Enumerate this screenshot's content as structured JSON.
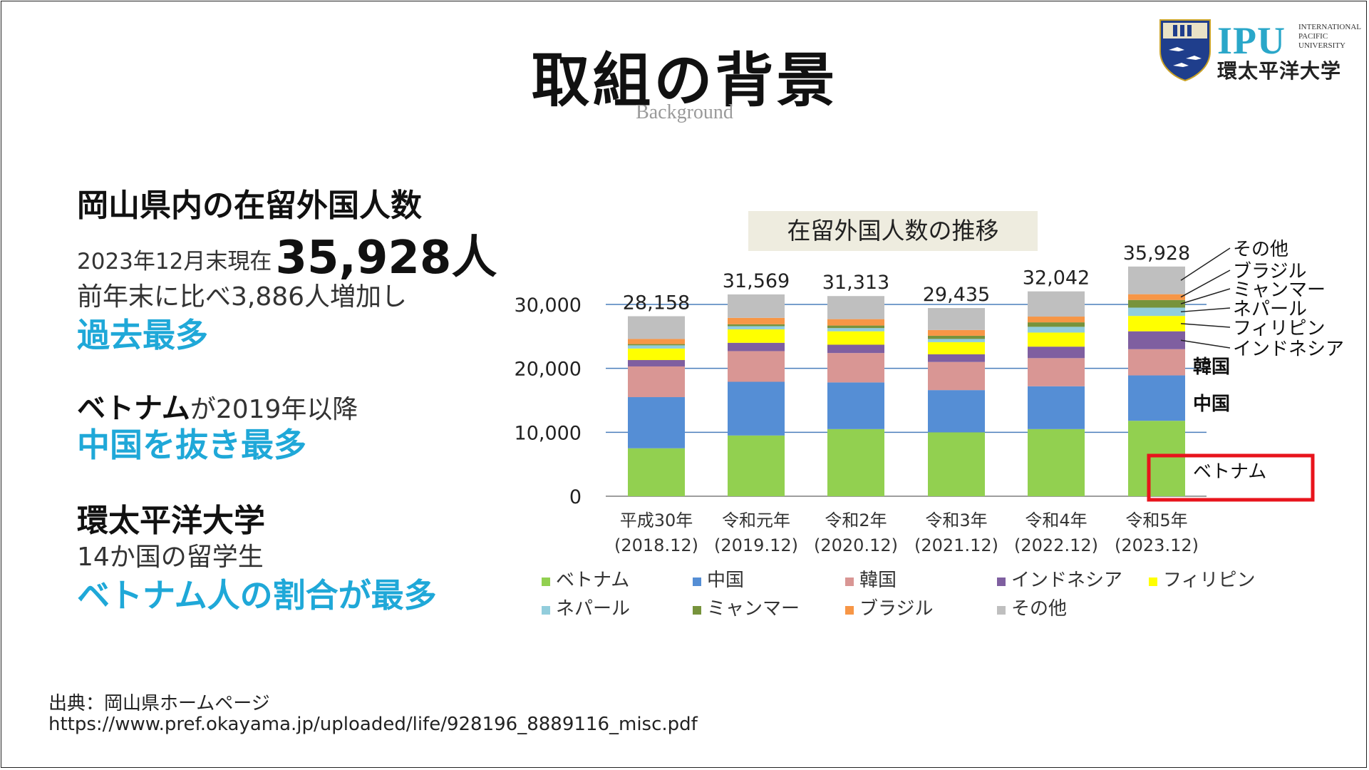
{
  "slide": {
    "title": "取組の背景",
    "subtitle": "Background"
  },
  "logo": {
    "abbr": "IPU",
    "english_line1": "INTERNATIONAL",
    "english_line2": "PACIFIC",
    "english_line3": "UNIVERSITY",
    "japanese": "環太平洋大学"
  },
  "left": {
    "section1_heading": "岡山県内の在留外国人数",
    "section1_date": "2023年12月末現在",
    "section1_total": "35,928人",
    "section1_increase": "前年末に比べ3,886人増加し",
    "section1_highlight": "過去最多",
    "section2_bold": "ベトナム",
    "section2_rest": "が2019年以降",
    "section2_highlight": "中国を抜き最多",
    "section3_heading": "環太平洋大学",
    "section3_text": "14か国の留学生",
    "section3_highlight": "ベトナム人の割合が最多"
  },
  "source": {
    "label": "出典：岡山県ホームページ",
    "url": "https://www.pref.okayama.jp/uploaded/life/928196_8889116_misc.pdf"
  },
  "colors": {
    "accent": "#1fa8d8",
    "highlight_box": "#e8141c"
  },
  "chart_data": {
    "type": "bar",
    "stacked": true,
    "title": "在留外国人数の推移",
    "categories": [
      "平成30年",
      "令和元年",
      "令和2年",
      "令和3年",
      "令和4年",
      "令和5年"
    ],
    "category_sublabels": [
      "(2018.12)",
      "(2019.12)",
      "(2020.12)",
      "(2021.12)",
      "(2022.12)",
      "(2023.12)"
    ],
    "totals": [
      "28,158",
      "31,569",
      "31,313",
      "29,435",
      "32,042",
      "35,928"
    ],
    "total_values": [
      28158,
      31569,
      31313,
      29435,
      32042,
      35928
    ],
    "ylim": [
      0,
      35000
    ],
    "yticks": [
      0,
      10000,
      20000,
      30000
    ],
    "ytick_labels": [
      "0",
      "10,000",
      "20,000",
      "30,000"
    ],
    "grid": true,
    "series": [
      {
        "name": "ベトナム",
        "color": "#92d050",
        "values": [
          7500,
          9500,
          10500,
          10000,
          10500,
          11800
        ]
      },
      {
        "name": "中国",
        "color": "#558ed5",
        "values": [
          8000,
          8400,
          7300,
          6600,
          6700,
          7100
        ]
      },
      {
        "name": "韓国",
        "color": "#d99694",
        "values": [
          4800,
          4800,
          4600,
          4400,
          4400,
          4100
        ]
      },
      {
        "name": "インドネシア",
        "color": "#7f5fa0",
        "values": [
          1000,
          1300,
          1300,
          1200,
          1800,
          2800
        ]
      },
      {
        "name": "フィリピン",
        "color": "#ffff00",
        "values": [
          1800,
          2100,
          2100,
          1900,
          2200,
          2400
        ]
      },
      {
        "name": "ネパール",
        "color": "#92cddc",
        "values": [
          500,
          500,
          500,
          500,
          900,
          1300
        ]
      },
      {
        "name": "ミャンマー",
        "color": "#77933c",
        "values": [
          200,
          300,
          400,
          500,
          700,
          1200
        ]
      },
      {
        "name": "ブラジル",
        "color": "#f79646",
        "values": [
          800,
          1000,
          1000,
          900,
          900,
          900
        ]
      },
      {
        "name": "その他",
        "color": "#bfbfbf",
        "values": [
          3558,
          3669,
          3613,
          3435,
          3942,
          4328
        ]
      }
    ],
    "legend": [
      "ベトナム",
      "中国",
      "韓国",
      "インドネシア",
      "フィリピン",
      "ネパール",
      "ミャンマー",
      "ブラジル",
      "その他"
    ],
    "legend_placement": "bottom",
    "annotations": [
      "その他",
      "ブラジル",
      "ミャンマー",
      "ネパール",
      "フィリピン",
      "インドネシア",
      "韓国",
      "中国",
      "ベトナム"
    ],
    "highlighted_annotation": "ベトナム"
  }
}
